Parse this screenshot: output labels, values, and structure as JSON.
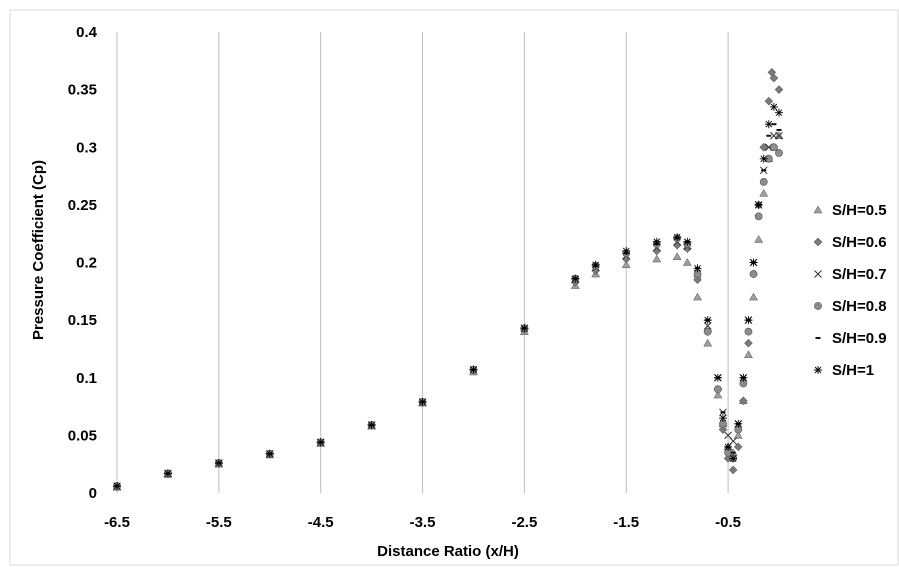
{
  "chart_data": {
    "type": "scatter",
    "title": "",
    "xlabel": "Distance Ratio (x/H)",
    "ylabel": "Pressure Coefficient (Cp)",
    "xlim": [
      -6.5,
      0
    ],
    "ylim": [
      0,
      0.4
    ],
    "x_ticks": [
      "-6.5",
      "-5.5",
      "-4.5",
      "-3.5",
      "-2.5",
      "-1.5",
      "-0.5"
    ],
    "y_ticks": [
      "0",
      "0.05",
      "0.1",
      "0.15",
      "0.2",
      "0.25",
      "0.3",
      "0.35",
      "0.4"
    ],
    "grid": "vertical",
    "legend_position": "right",
    "series": [
      {
        "name": "S/H=0.5",
        "marker": "triangle",
        "color": "#9e9e9e",
        "x": [
          -6.5,
          -6.0,
          -5.5,
          -5.0,
          -4.5,
          -4.0,
          -3.5,
          -3.0,
          -2.5,
          -2.0,
          -1.8,
          -1.5,
          -1.2,
          -1.0,
          -0.9,
          -0.8,
          -0.7,
          -0.6,
          -0.55,
          -0.5,
          -0.45,
          -0.4,
          -0.35,
          -0.3,
          -0.25,
          -0.2,
          -0.15,
          -0.1,
          -0.05,
          0.0
        ],
        "y": [
          0.005,
          0.016,
          0.025,
          0.033,
          0.043,
          0.058,
          0.078,
          0.105,
          0.14,
          0.18,
          0.19,
          0.198,
          0.203,
          0.205,
          0.2,
          0.17,
          0.13,
          0.085,
          0.06,
          0.04,
          0.035,
          0.05,
          0.08,
          0.12,
          0.17,
          0.22,
          0.26,
          0.29,
          0.3,
          0.31
        ]
      },
      {
        "name": "S/H=0.6",
        "marker": "diamond",
        "color": "#7a7a7a",
        "x": [
          -6.5,
          -6.0,
          -5.5,
          -5.0,
          -4.5,
          -4.0,
          -3.5,
          -3.0,
          -2.5,
          -2.0,
          -1.8,
          -1.5,
          -1.2,
          -1.0,
          -0.9,
          -0.8,
          -0.7,
          -0.6,
          -0.55,
          -0.5,
          -0.45,
          -0.4,
          -0.35,
          -0.3,
          -0.25,
          -0.2,
          -0.15,
          -0.1,
          -0.07,
          -0.05,
          0.0
        ],
        "y": [
          0.006,
          0.017,
          0.026,
          0.034,
          0.044,
          0.059,
          0.079,
          0.107,
          0.142,
          0.183,
          0.193,
          0.203,
          0.21,
          0.215,
          0.212,
          0.185,
          0.14,
          0.09,
          0.055,
          0.03,
          0.02,
          0.04,
          0.08,
          0.13,
          0.19,
          0.25,
          0.3,
          0.34,
          0.365,
          0.36,
          0.35
        ]
      },
      {
        "name": "S/H=0.7",
        "marker": "x",
        "color": "#333333",
        "x": [
          -6.5,
          -6.0,
          -5.5,
          -5.0,
          -4.5,
          -4.0,
          -3.5,
          -3.0,
          -2.5,
          -2.0,
          -1.8,
          -1.5,
          -1.2,
          -1.0,
          -0.9,
          -0.8,
          -0.7,
          -0.6,
          -0.55,
          -0.5,
          -0.45,
          -0.4,
          -0.35,
          -0.3,
          -0.25,
          -0.2,
          -0.15,
          -0.1,
          -0.05,
          0.0
        ],
        "y": [
          0.006,
          0.017,
          0.026,
          0.034,
          0.044,
          0.059,
          0.079,
          0.107,
          0.143,
          0.185,
          0.196,
          0.206,
          0.213,
          0.218,
          0.214,
          0.19,
          0.145,
          0.1,
          0.07,
          0.05,
          0.045,
          0.06,
          0.1,
          0.15,
          0.2,
          0.25,
          0.28,
          0.3,
          0.31,
          0.31
        ]
      },
      {
        "name": "S/H=0.8",
        "marker": "circle",
        "color": "#8c8c8c",
        "x": [
          -6.5,
          -6.0,
          -5.5,
          -5.0,
          -4.5,
          -4.0,
          -3.5,
          -3.0,
          -2.5,
          -2.0,
          -1.8,
          -1.5,
          -1.2,
          -1.0,
          -0.9,
          -0.8,
          -0.7,
          -0.6,
          -0.55,
          -0.5,
          -0.45,
          -0.4,
          -0.35,
          -0.3,
          -0.25,
          -0.2,
          -0.15,
          -0.1,
          -0.05,
          0.0
        ],
        "y": [
          0.006,
          0.017,
          0.026,
          0.034,
          0.044,
          0.059,
          0.079,
          0.107,
          0.143,
          0.186,
          0.197,
          0.208,
          0.216,
          0.221,
          0.216,
          0.19,
          0.14,
          0.09,
          0.06,
          0.035,
          0.03,
          0.055,
          0.095,
          0.14,
          0.19,
          0.24,
          0.27,
          0.29,
          0.3,
          0.295
        ]
      },
      {
        "name": "S/H=0.9",
        "marker": "dash",
        "color": "#111111",
        "x": [
          -6.5,
          -6.0,
          -5.5,
          -5.0,
          -4.5,
          -4.0,
          -3.5,
          -3.0,
          -2.5,
          -2.0,
          -1.8,
          -1.5,
          -1.2,
          -1.0,
          -0.9,
          -0.8,
          -0.7,
          -0.6,
          -0.55,
          -0.5,
          -0.45,
          -0.4,
          -0.35,
          -0.3,
          -0.25,
          -0.2,
          -0.15,
          -0.1,
          -0.05,
          0.0
        ],
        "y": [
          0.006,
          0.017,
          0.026,
          0.034,
          0.044,
          0.059,
          0.079,
          0.107,
          0.143,
          0.186,
          0.197,
          0.208,
          0.216,
          0.221,
          0.218,
          0.195,
          0.15,
          0.1,
          0.07,
          0.04,
          0.035,
          0.06,
          0.1,
          0.15,
          0.2,
          0.25,
          0.28,
          0.31,
          0.32,
          0.315
        ]
      },
      {
        "name": "S/H=1",
        "marker": "star",
        "color": "#000000",
        "x": [
          -6.5,
          -6.0,
          -5.5,
          -5.0,
          -4.5,
          -4.0,
          -3.5,
          -3.0,
          -2.5,
          -2.0,
          -1.8,
          -1.5,
          -1.2,
          -1.0,
          -0.9,
          -0.8,
          -0.7,
          -0.6,
          -0.55,
          -0.5,
          -0.45,
          -0.4,
          -0.35,
          -0.3,
          -0.25,
          -0.2,
          -0.15,
          -0.1,
          -0.05,
          0.0
        ],
        "y": [
          0.006,
          0.017,
          0.026,
          0.034,
          0.044,
          0.059,
          0.079,
          0.107,
          0.143,
          0.186,
          0.198,
          0.21,
          0.218,
          0.222,
          0.218,
          0.195,
          0.15,
          0.1,
          0.065,
          0.04,
          0.03,
          0.06,
          0.1,
          0.15,
          0.2,
          0.25,
          0.29,
          0.32,
          0.335,
          0.33
        ]
      }
    ]
  }
}
